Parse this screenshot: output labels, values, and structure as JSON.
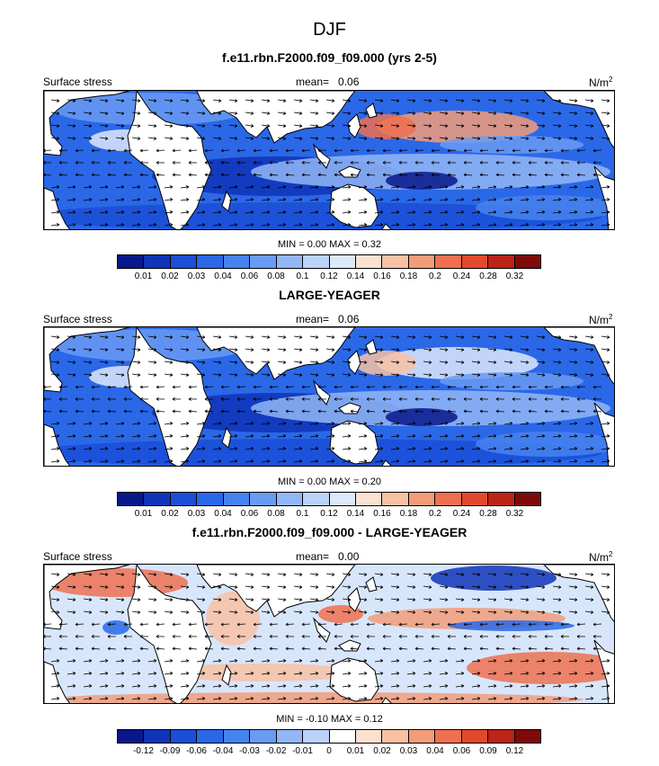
{
  "main_title": "DJF",
  "panels": [
    {
      "title": "f.e11.rbn.F2000.f09_f09.000 (yrs 2-5)",
      "left_label": "Surface stress",
      "mean_label": "mean=",
      "mean_value": "0.06",
      "units": "N/m",
      "units_exp": "2",
      "minmax": "MIN =  0.00 MAX =  0.32",
      "colorbar_ticks": [
        "0.01",
        "0.02",
        "0.03",
        "0.04",
        "0.06",
        "0.08",
        "0.1",
        "0.12",
        "0.14",
        "0.16",
        "0.18",
        "0.2",
        "0.24",
        "0.28",
        "0.32"
      ],
      "colorbar_colors": [
        "#08188a",
        "#0f34b8",
        "#1a4fd6",
        "#2a68e8",
        "#4683ee",
        "#6a9bf2",
        "#93b7f6",
        "#bad3f8",
        "#dde9fb",
        "#fbe1d2",
        "#f8c1a4",
        "#f29c79",
        "#ee7050",
        "#e2492c",
        "#bb2417",
        "#7f0a0a"
      ],
      "map_style": "magnitude"
    },
    {
      "title": "LARGE-YEAGER",
      "left_label": "Surface stress",
      "mean_label": "mean=",
      "mean_value": "0.06",
      "units": "N/m",
      "units_exp": "2",
      "minmax": "MIN =  0.00 MAX =  0.20",
      "colorbar_ticks": [
        "0.01",
        "0.02",
        "0.03",
        "0.04",
        "0.06",
        "0.08",
        "0.1",
        "0.12",
        "0.14",
        "0.16",
        "0.18",
        "0.2",
        "0.24",
        "0.28",
        "0.32"
      ],
      "colorbar_colors": [
        "#08188a",
        "#0f34b8",
        "#1a4fd6",
        "#2a68e8",
        "#4683ee",
        "#6a9bf2",
        "#93b7f6",
        "#bad3f8",
        "#dde9fb",
        "#fbe1d2",
        "#f8c1a4",
        "#f29c79",
        "#ee7050",
        "#e2492c",
        "#bb2417",
        "#7f0a0a"
      ],
      "map_style": "magnitude"
    },
    {
      "title": "f.e11.rbn.F2000.f09_f09.000 - LARGE-YEAGER",
      "left_label": "Surface stress",
      "mean_label": "mean=",
      "mean_value": "0.00",
      "units": "N/m",
      "units_exp": "2",
      "minmax": "MIN = -0.10 MAX =  0.12",
      "colorbar_ticks": [
        "-0.12",
        "-0.09",
        "-0.06",
        "-0.04",
        "-0.03",
        "-0.02",
        "-0.01",
        "0",
        "0.01",
        "0.02",
        "0.03",
        "0.04",
        "0.06",
        "0.09",
        "0.12"
      ],
      "colorbar_colors": [
        "#08188a",
        "#0f34b8",
        "#1a4fd6",
        "#2a68e8",
        "#4683ee",
        "#6a9bf2",
        "#93b7f6",
        "#bad3f8",
        "#ffffff",
        "#fbe1d2",
        "#f8c1a4",
        "#f29c79",
        "#ee7050",
        "#e2492c",
        "#bb2417",
        "#7f0a0a"
      ],
      "map_style": "difference"
    }
  ]
}
